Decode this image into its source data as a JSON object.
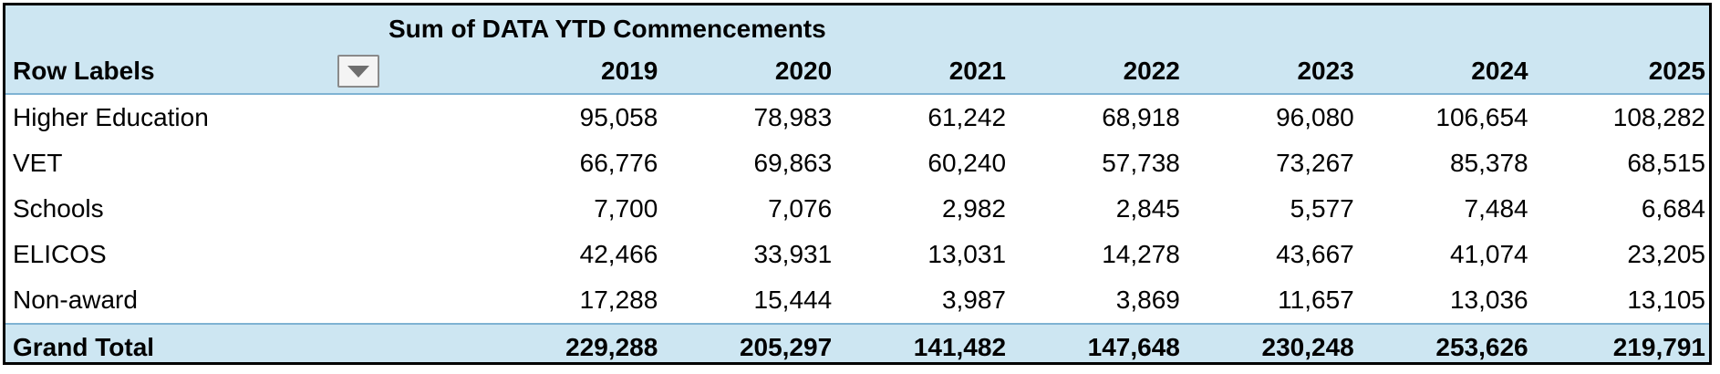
{
  "pivot": {
    "measure_title": "Sum of DATA YTD Commencements",
    "row_labels_header": "Row Labels",
    "filter_icon": "dropdown-triangle-icon",
    "years": [
      "2019",
      "2020",
      "2021",
      "2022",
      "2023",
      "2024",
      "2025"
    ],
    "rows": [
      {
        "label": "Higher Education",
        "values": [
          "95,058",
          "78,983",
          "61,242",
          "68,918",
          "96,080",
          "106,654",
          "108,282"
        ]
      },
      {
        "label": "VET",
        "values": [
          "66,776",
          "69,863",
          "60,240",
          "57,738",
          "73,267",
          "85,378",
          "68,515"
        ]
      },
      {
        "label": "Schools",
        "values": [
          "7,700",
          "7,076",
          "2,982",
          "2,845",
          "5,577",
          "7,484",
          "6,684"
        ]
      },
      {
        "label": "ELICOS",
        "values": [
          "42,466",
          "33,931",
          "13,031",
          "14,278",
          "43,667",
          "41,074",
          "23,205"
        ]
      },
      {
        "label": "Non-award",
        "values": [
          "17,288",
          "15,444",
          "3,987",
          "3,869",
          "11,657",
          "13,036",
          "13,105"
        ]
      }
    ],
    "grand_total": {
      "label": "Grand Total",
      "values": [
        "229,288",
        "205,297",
        "141,482",
        "147,648",
        "230,248",
        "253,626",
        "219,791"
      ]
    },
    "colors": {
      "header_fill": "#cde6f2",
      "header_border": "#7fb3d3",
      "frame_border": "#000000"
    }
  }
}
